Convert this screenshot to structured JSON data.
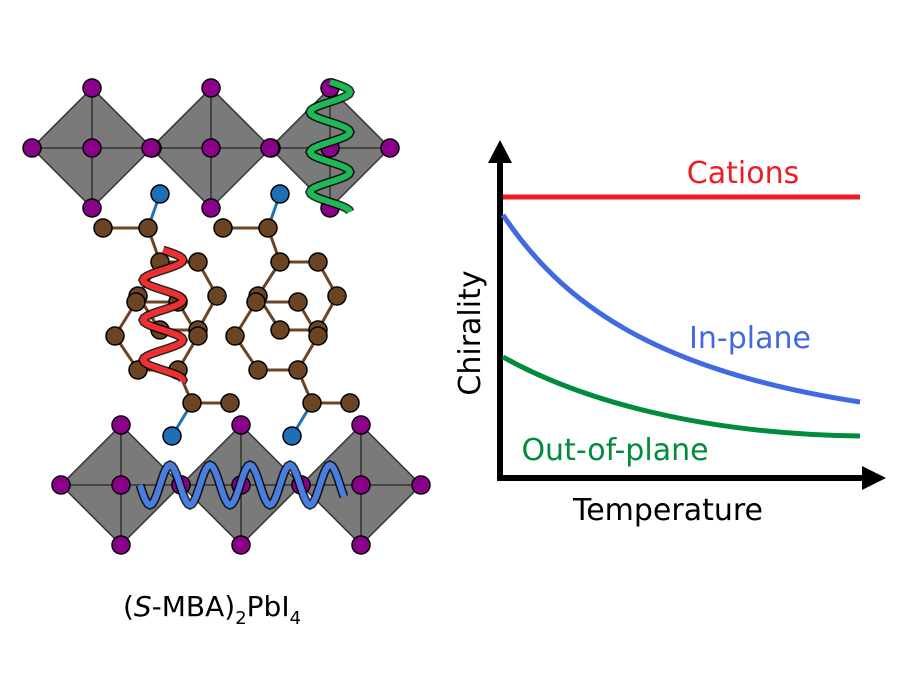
{
  "caption": {
    "open": "(",
    "italic": "S",
    "middle": "-MBA)",
    "sub1": "2",
    "formula": "PbI",
    "sub2": "4"
  },
  "plot": {
    "y_label": "Chirality",
    "x_label": "Temperature",
    "curves": [
      {
        "label": "Cations",
        "color": "#ee1c25"
      },
      {
        "label": "In-plane",
        "color": "#4169e1"
      },
      {
        "label": "Out-of-plane",
        "color": "#008c3c"
      }
    ]
  }
}
